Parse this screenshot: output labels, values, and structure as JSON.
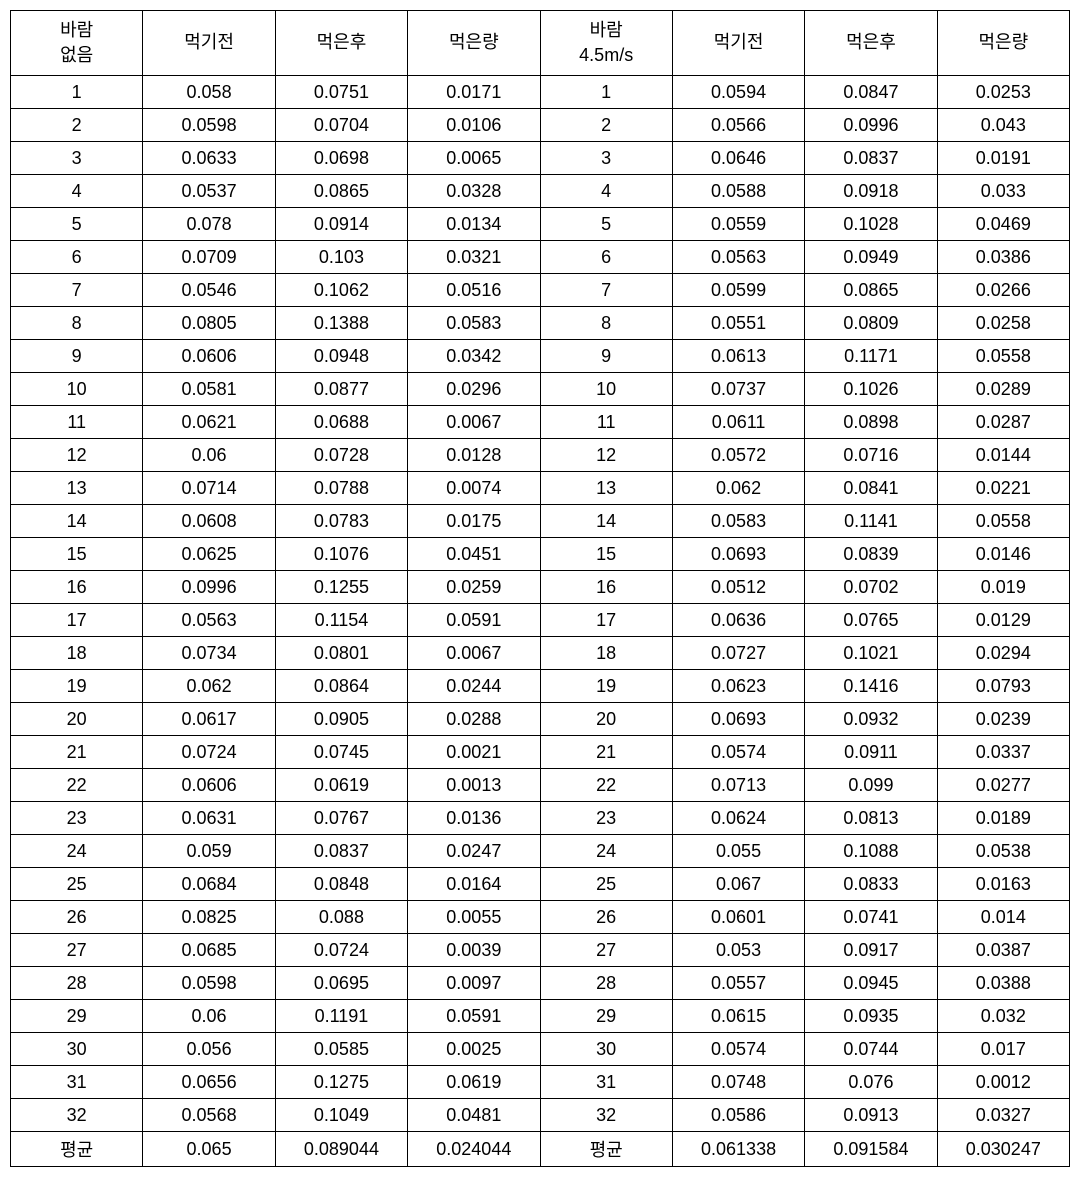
{
  "table": {
    "headers": [
      "바람\n없음",
      "먹기전",
      "먹은후",
      "먹은량",
      "바람\n4.5m/s",
      "먹기전",
      "먹은후",
      "먹은량"
    ],
    "rows": [
      [
        "1",
        "0.058",
        "0.0751",
        "0.0171",
        "1",
        "0.0594",
        "0.0847",
        "0.0253"
      ],
      [
        "2",
        "0.0598",
        "0.0704",
        "0.0106",
        "2",
        "0.0566",
        "0.0996",
        "0.043"
      ],
      [
        "3",
        "0.0633",
        "0.0698",
        "0.0065",
        "3",
        "0.0646",
        "0.0837",
        "0.0191"
      ],
      [
        "4",
        "0.0537",
        "0.0865",
        "0.0328",
        "4",
        "0.0588",
        "0.0918",
        "0.033"
      ],
      [
        "5",
        "0.078",
        "0.0914",
        "0.0134",
        "5",
        "0.0559",
        "0.1028",
        "0.0469"
      ],
      [
        "6",
        "0.0709",
        "0.103",
        "0.0321",
        "6",
        "0.0563",
        "0.0949",
        "0.0386"
      ],
      [
        "7",
        "0.0546",
        "0.1062",
        "0.0516",
        "7",
        "0.0599",
        "0.0865",
        "0.0266"
      ],
      [
        "8",
        "0.0805",
        "0.1388",
        "0.0583",
        "8",
        "0.0551",
        "0.0809",
        "0.0258"
      ],
      [
        "9",
        "0.0606",
        "0.0948",
        "0.0342",
        "9",
        "0.0613",
        "0.1171",
        "0.0558"
      ],
      [
        "10",
        "0.0581",
        "0.0877",
        "0.0296",
        "10",
        "0.0737",
        "0.1026",
        "0.0289"
      ],
      [
        "11",
        "0.0621",
        "0.0688",
        "0.0067",
        "11",
        "0.0611",
        "0.0898",
        "0.0287"
      ],
      [
        "12",
        "0.06",
        "0.0728",
        "0.0128",
        "12",
        "0.0572",
        "0.0716",
        "0.0144"
      ],
      [
        "13",
        "0.0714",
        "0.0788",
        "0.0074",
        "13",
        "0.062",
        "0.0841",
        "0.0221"
      ],
      [
        "14",
        "0.0608",
        "0.0783",
        "0.0175",
        "14",
        "0.0583",
        "0.1141",
        "0.0558"
      ],
      [
        "15",
        "0.0625",
        "0.1076",
        "0.0451",
        "15",
        "0.0693",
        "0.0839",
        "0.0146"
      ],
      [
        "16",
        "0.0996",
        "0.1255",
        "0.0259",
        "16",
        "0.0512",
        "0.0702",
        "0.019"
      ],
      [
        "17",
        "0.0563",
        "0.1154",
        "0.0591",
        "17",
        "0.0636",
        "0.0765",
        "0.0129"
      ],
      [
        "18",
        "0.0734",
        "0.0801",
        "0.0067",
        "18",
        "0.0727",
        "0.1021",
        "0.0294"
      ],
      [
        "19",
        "0.062",
        "0.0864",
        "0.0244",
        "19",
        "0.0623",
        "0.1416",
        "0.0793"
      ],
      [
        "20",
        "0.0617",
        "0.0905",
        "0.0288",
        "20",
        "0.0693",
        "0.0932",
        "0.0239"
      ],
      [
        "21",
        "0.0724",
        "0.0745",
        "0.0021",
        "21",
        "0.0574",
        "0.0911",
        "0.0337"
      ],
      [
        "22",
        "0.0606",
        "0.0619",
        "0.0013",
        "22",
        "0.0713",
        "0.099",
        "0.0277"
      ],
      [
        "23",
        "0.0631",
        "0.0767",
        "0.0136",
        "23",
        "0.0624",
        "0.0813",
        "0.0189"
      ],
      [
        "24",
        "0.059",
        "0.0837",
        "0.0247",
        "24",
        "0.055",
        "0.1088",
        "0.0538"
      ],
      [
        "25",
        "0.0684",
        "0.0848",
        "0.0164",
        "25",
        "0.067",
        "0.0833",
        "0.0163"
      ],
      [
        "26",
        "0.0825",
        "0.088",
        "0.0055",
        "26",
        "0.0601",
        "0.0741",
        "0.014"
      ],
      [
        "27",
        "0.0685",
        "0.0724",
        "0.0039",
        "27",
        "0.053",
        "0.0917",
        "0.0387"
      ],
      [
        "28",
        "0.0598",
        "0.0695",
        "0.0097",
        "28",
        "0.0557",
        "0.0945",
        "0.0388"
      ],
      [
        "29",
        "0.06",
        "0.1191",
        "0.0591",
        "29",
        "0.0615",
        "0.0935",
        "0.032"
      ],
      [
        "30",
        "0.056",
        "0.0585",
        "0.0025",
        "30",
        "0.0574",
        "0.0744",
        "0.017"
      ],
      [
        "31",
        "0.0656",
        "0.1275",
        "0.0619",
        "31",
        "0.0748",
        "0.076",
        "0.0012"
      ],
      [
        "32",
        "0.0568",
        "0.1049",
        "0.0481",
        "32",
        "0.0586",
        "0.0913",
        "0.0327"
      ],
      [
        "평균",
        "0.065",
        "0.089044",
        "0.024044",
        "평균",
        "0.061338",
        "0.091584",
        "0.030247"
      ]
    ],
    "border_color": "#000000",
    "background_color": "#ffffff",
    "text_color": "#000000",
    "font_size": 18,
    "num_columns": 8
  }
}
